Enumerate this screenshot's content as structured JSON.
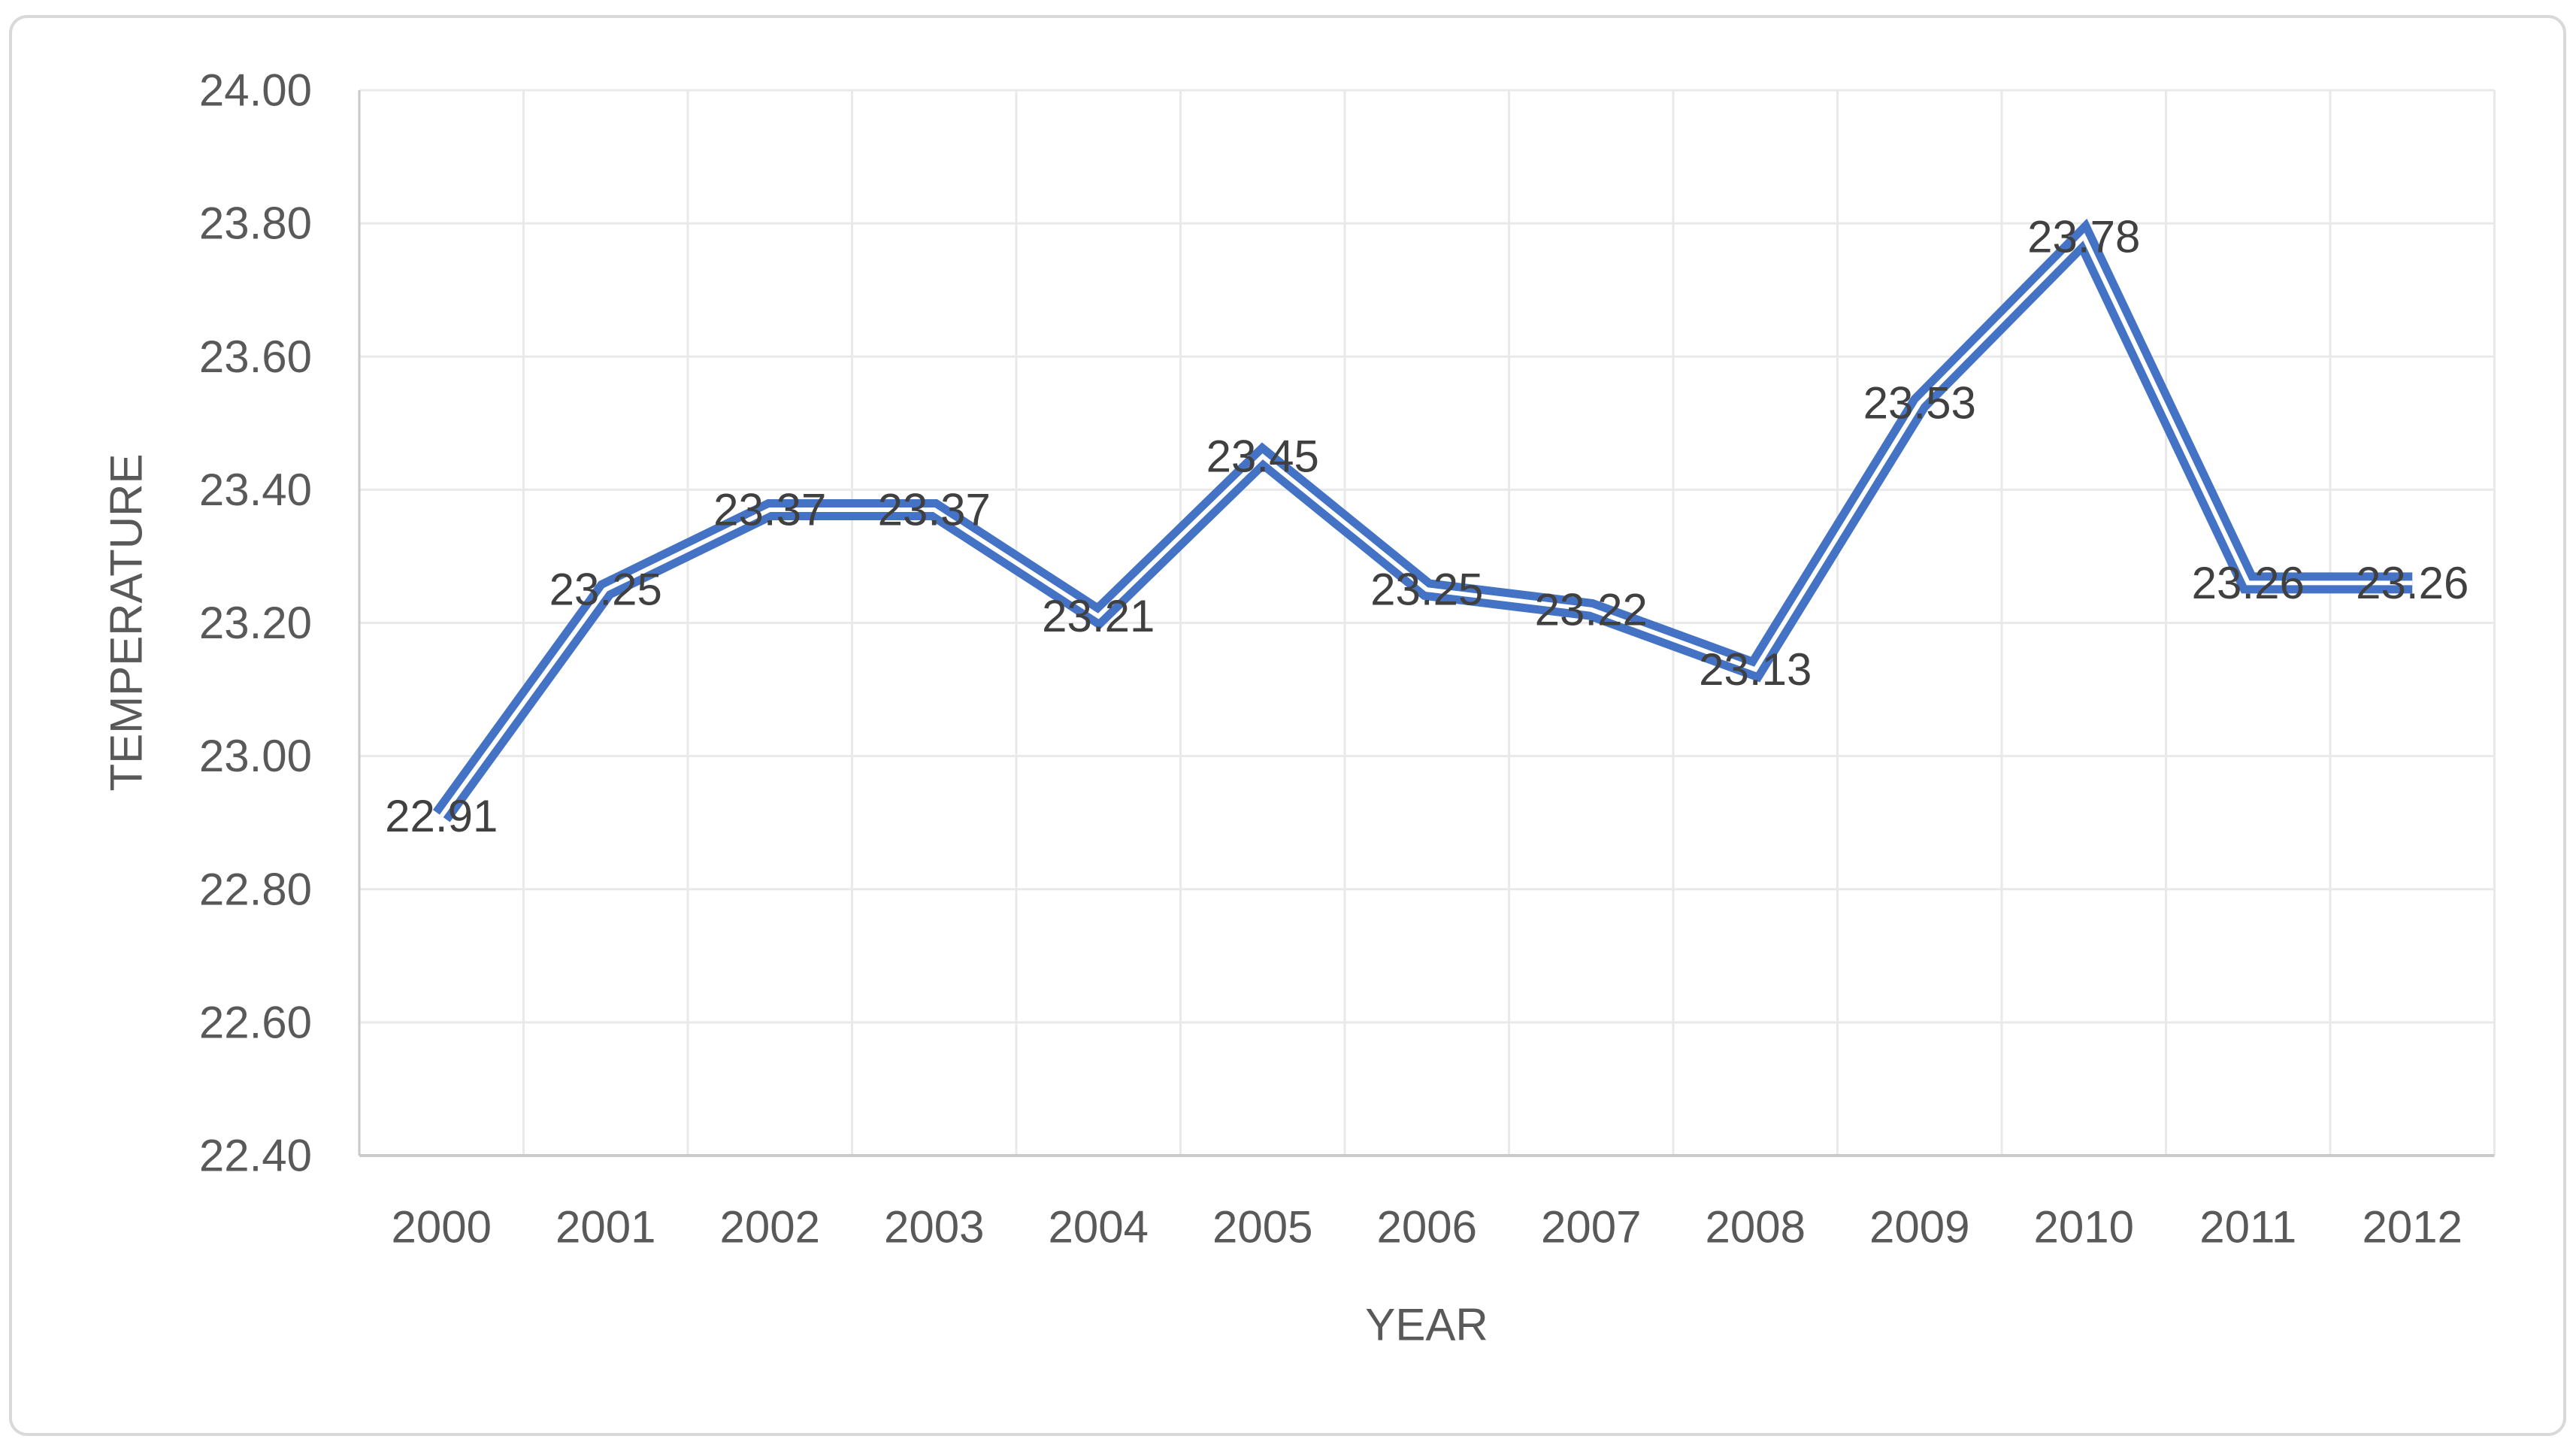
{
  "chart_data": {
    "type": "line",
    "categories": [
      "2000",
      "2001",
      "2002",
      "2003",
      "2004",
      "2005",
      "2006",
      "2007",
      "2008",
      "2009",
      "2010",
      "2011",
      "2012"
    ],
    "series": [
      {
        "name": "TEMPERATURE",
        "values": [
          22.91,
          23.25,
          23.37,
          23.37,
          23.21,
          23.45,
          23.25,
          23.22,
          23.13,
          23.53,
          23.78,
          23.26,
          23.26
        ]
      }
    ],
    "title": "",
    "xlabel": "YEAR",
    "ylabel": "TEMPERATURE",
    "ylim": [
      22.4,
      24.0
    ],
    "ytick_step": 0.2,
    "ytick_labels": [
      "22.40",
      "22.60",
      "22.80",
      "23.00",
      "23.20",
      "23.40",
      "23.60",
      "23.80",
      "24.00"
    ],
    "data_labels": [
      "22.91",
      "23.25",
      "23.37",
      "23.37",
      "23.21",
      "23.45",
      "23.25",
      "23.22",
      "23.13",
      "23.53",
      "23.78",
      "23.26",
      "23.26"
    ],
    "data_label_position": "center",
    "grid": true,
    "legend_position": "none",
    "line_style": "double",
    "colors": {
      "line": "#4472C4",
      "line_inner": "#FFFFFF",
      "data_label": "#404040",
      "tick_label": "#595959",
      "axis_title": "#595959",
      "gridline": "#E9E9E9",
      "axis_line": "#C9C9C9",
      "border": "#D9D9D9",
      "background": "#FFFFFF"
    }
  }
}
